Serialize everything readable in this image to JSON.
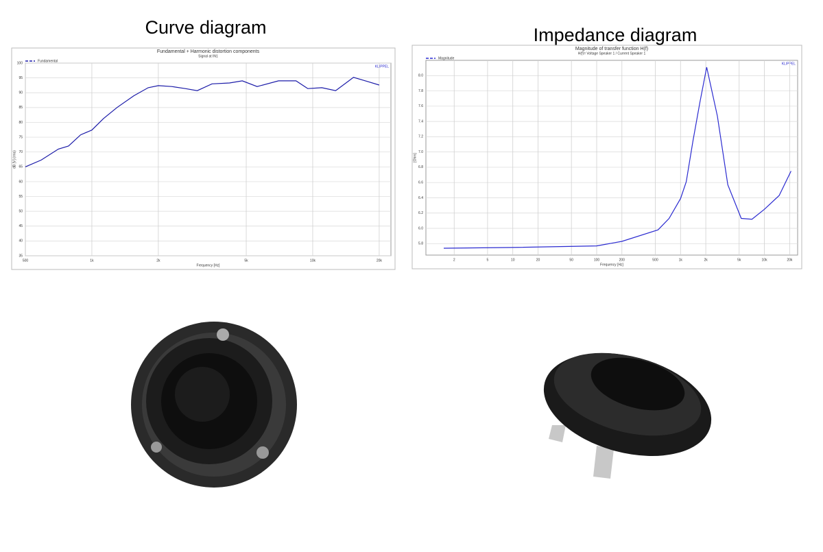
{
  "chart_data": [
    {
      "type": "line",
      "heading": "Curve diagram",
      "title": "Fundamental + Harmonic distortion components",
      "subtitle": "Signal at IN1",
      "brand": "KLIPPEL",
      "x_label": "Frequency [Hz]",
      "y_label": "dB [V] (rms)",
      "xscale": "log",
      "grid": true,
      "legend": "upper left",
      "xlim": [
        500,
        22600
      ],
      "xticks": [
        500,
        {
          "value": 1000,
          "label": "1k"
        },
        {
          "value": 2000,
          "label": "2k"
        },
        {
          "value": 5000,
          "label": "5k"
        },
        {
          "value": 10000,
          "label": "10k"
        },
        {
          "value": 20000,
          "label": "20k"
        }
      ],
      "ylim": [
        35,
        100
      ],
      "yticks": [
        35,
        40,
        45,
        50,
        55,
        60,
        65,
        70,
        75,
        80,
        85,
        90,
        95,
        100
      ],
      "x": [
        500,
        590,
        705,
        784,
        890,
        1000,
        1130,
        1300,
        1550,
        1800,
        2000,
        2300,
        2650,
        3000,
        3500,
        4200,
        4800,
        5600,
        7000,
        8400,
        9500,
        11000,
        12700,
        15300,
        17700,
        20000
      ],
      "series": [
        {
          "name": "Fundamental",
          "color": "#1a1aa8",
          "values": [
            65,
            67.3,
            71,
            72,
            75.8,
            77.4,
            81.3,
            85,
            89,
            91.7,
            92.4,
            92.1,
            91.4,
            90.7,
            93,
            93.3,
            94,
            92.1,
            94,
            94,
            91.4,
            91.7,
            90.7,
            95.2,
            93.8,
            92.6
          ]
        }
      ]
    },
    {
      "type": "line",
      "heading": "Impedance diagram",
      "title": "Magnitude of transfer function H(f)",
      "subtitle": "H(f)= Voltage Speaker 1 / Current Speaker 1",
      "brand": "KLIPPEL",
      "x_label": "Frequency [Hz]",
      "y_label": "[Ohm]",
      "xscale": "log",
      "grid": true,
      "legend": "upper left",
      "xlim": [
        0.92,
        24900
      ],
      "xticks": [
        2,
        5,
        10,
        20,
        50,
        100,
        200,
        500,
        {
          "value": 1000,
          "label": "1k"
        },
        {
          "value": 2000,
          "label": "2k"
        },
        {
          "value": 5000,
          "label": "5k"
        },
        {
          "value": 10000,
          "label": "10k"
        },
        {
          "value": 20000,
          "label": "20k"
        }
      ],
      "ylim": [
        5.65,
        8.2
      ],
      "yticks": [
        5.8,
        {
          "value": 6.0,
          "label": "6.0"
        },
        6.2,
        6.4,
        6.6,
        6.8,
        {
          "value": 7.0,
          "label": "7.0"
        },
        7.2,
        7.4,
        7.6,
        7.8,
        {
          "value": 8.0,
          "label": "8.0"
        }
      ],
      "x": [
        1.5,
        10,
        100,
        200,
        540,
        730,
        1000,
        1170,
        1410,
        1700,
        2050,
        2750,
        3660,
        5300,
        7100,
        10000,
        15000,
        20800
      ],
      "series": [
        {
          "name": "Magnitude",
          "color": "#2a2ad0",
          "values": [
            5.74,
            5.75,
            5.77,
            5.83,
            5.98,
            6.13,
            6.39,
            6.61,
            7.15,
            7.65,
            8.11,
            7.47,
            6.57,
            6.13,
            6.12,
            6.25,
            6.43,
            6.75
          ]
        }
      ]
    }
  ]
}
